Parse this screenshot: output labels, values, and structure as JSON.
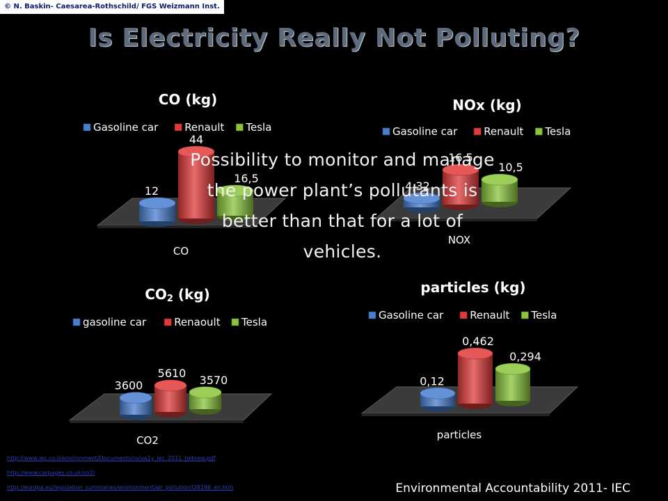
{
  "credit": "© N. Baskin- Caesarea-Rothschild/ FGS Weizmann Inst.",
  "title": "Is Electricity Really Not Polluting?",
  "overlay_text": "Possibility to monitor  and manage the power plant’s pollutants  is better than that for a lot of  vehicles.",
  "links": [
    "http://www.iec.co.il/environment/Documents/sviva1y_iec_2011_hebrew.pdf",
    "http://www.carpages.co.uk/co2/",
    "http://europa.eu/legislation_summaries/environment/air_pollution/l28186_en.htm"
  ],
  "footer": "Environmental Accountability 2011- IEC",
  "colors": {
    "blue": "#4a7fd0",
    "red": "#e03a3a",
    "green": "#8ac43b",
    "title_gray": "#5e6b7d"
  },
  "chart_data": [
    {
      "type": "bar",
      "title": "CO (kg)",
      "category": "CO",
      "series": [
        {
          "name": "Gasoline car",
          "value": 12,
          "label": "12"
        },
        {
          "name": "Renault",
          "value": 44,
          "label": "44"
        },
        {
          "name": "Tesla",
          "value": 16.5,
          "label": "16,5"
        }
      ]
    },
    {
      "type": "bar",
      "title": "NOx (kg)",
      "category": "NOX",
      "series": [
        {
          "name": "Gasoline car",
          "value": 4.32,
          "label": "4,32"
        },
        {
          "name": "Renault",
          "value": 16.5,
          "label": "16,5"
        },
        {
          "name": "Tesla",
          "value": 10.5,
          "label": "10,5"
        }
      ]
    },
    {
      "type": "bar",
      "title": "CO2 (kg)",
      "category": "CO2",
      "series": [
        {
          "name": "gasoline car",
          "value": 3600,
          "label": "3600"
        },
        {
          "name": "Renaoult",
          "value": 5610,
          "label": "5610"
        },
        {
          "name": "Tesla",
          "value": 3570,
          "label": "3570"
        }
      ]
    },
    {
      "type": "bar",
      "title": "particles (kg)",
      "category": "particles",
      "series": [
        {
          "name": "Gasoline car",
          "value": 0.12,
          "label": "0,12"
        },
        {
          "name": "Renault",
          "value": 0.462,
          "label": "0,462"
        },
        {
          "name": "Tesla",
          "value": 0.294,
          "label": "0,294"
        }
      ]
    }
  ]
}
